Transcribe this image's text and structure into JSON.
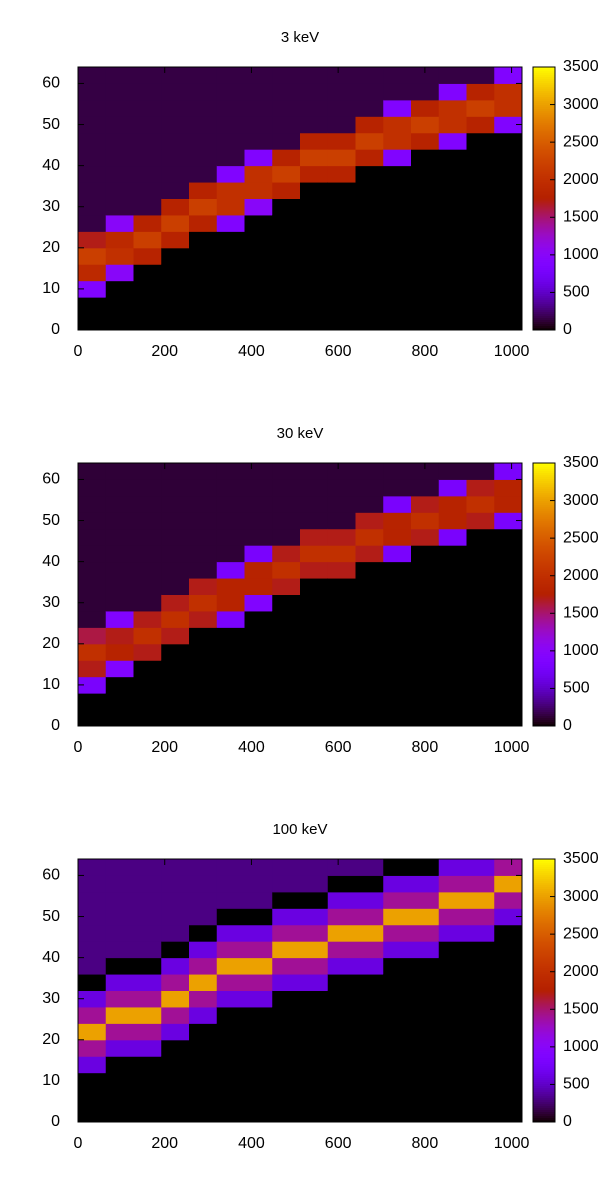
{
  "chart_data": [
    {
      "type": "heatmap",
      "title": "3 keV",
      "palette": "gnuplot-default",
      "xlim": [
        0,
        1024
      ],
      "xticks": [
        0,
        200,
        400,
        600,
        800,
        1000
      ],
      "ylim": [
        0,
        64
      ],
      "yticks": [
        0,
        10,
        20,
        30,
        40,
        50,
        60
      ],
      "cblim": [
        0,
        3500
      ],
      "cbticks": [
        0,
        500,
        1000,
        1500,
        2000,
        2500,
        3000,
        3500
      ],
      "xbins": [
        0,
        64,
        128,
        192,
        256,
        320,
        384,
        448,
        512,
        576,
        640,
        704,
        768,
        832,
        896,
        960,
        1024
      ],
      "ybins": [
        0,
        4,
        8,
        12,
        16,
        20,
        24,
        28,
        32,
        36,
        40,
        44,
        48,
        52,
        56,
        60,
        64
      ],
      "z": [
        [
          0,
          0,
          900,
          1900,
          2200,
          1700,
          150,
          150,
          150,
          150,
          150,
          150,
          150,
          150,
          150,
          150
        ],
        [
          0,
          0,
          0,
          1000,
          2000,
          1900,
          1000,
          150,
          150,
          150,
          150,
          150,
          150,
          150,
          150,
          150
        ],
        [
          0,
          0,
          0,
          0,
          1800,
          2200,
          1800,
          150,
          150,
          150,
          150,
          150,
          150,
          150,
          150,
          150
        ],
        [
          0,
          0,
          0,
          0,
          0,
          1800,
          2200,
          1800,
          150,
          150,
          150,
          150,
          150,
          150,
          150,
          150
        ],
        [
          0,
          0,
          0,
          0,
          0,
          0,
          1800,
          2200,
          1800,
          150,
          150,
          150,
          150,
          150,
          150,
          150
        ],
        [
          0,
          0,
          0,
          0,
          0,
          0,
          900,
          2000,
          2000,
          900,
          150,
          150,
          150,
          150,
          150,
          150
        ],
        [
          0,
          0,
          0,
          0,
          0,
          0,
          0,
          1000,
          2000,
          2000,
          900,
          150,
          150,
          150,
          150,
          150
        ],
        [
          0,
          0,
          0,
          0,
          0,
          0,
          0,
          0,
          1800,
          2200,
          1800,
          150,
          150,
          150,
          150,
          150
        ],
        [
          0,
          0,
          0,
          0,
          0,
          0,
          0,
          0,
          0,
          1800,
          2200,
          1800,
          150,
          150,
          150,
          150
        ],
        [
          0,
          0,
          0,
          0,
          0,
          0,
          0,
          0,
          0,
          1800,
          2200,
          1800,
          150,
          150,
          150,
          150
        ],
        [
          0,
          0,
          0,
          0,
          0,
          0,
          0,
          0,
          0,
          0,
          1800,
          2200,
          1800,
          150,
          150,
          150
        ],
        [
          0,
          0,
          0,
          0,
          0,
          0,
          0,
          0,
          0,
          0,
          900,
          2000,
          2000,
          900,
          150,
          150
        ],
        [
          0,
          0,
          0,
          0,
          0,
          0,
          0,
          0,
          0,
          0,
          0,
          1800,
          2200,
          1800,
          150,
          150
        ],
        [
          0,
          0,
          0,
          0,
          0,
          0,
          0,
          0,
          0,
          0,
          0,
          900,
          2000,
          2000,
          900,
          150
        ],
        [
          0,
          0,
          0,
          0,
          0,
          0,
          0,
          0,
          0,
          0,
          0,
          0,
          1800,
          2200,
          1800,
          150
        ],
        [
          0,
          0,
          0,
          0,
          0,
          0,
          0,
          0,
          0,
          0,
          0,
          0,
          900,
          2000,
          2000,
          900
        ]
      ]
    },
    {
      "type": "heatmap",
      "title": "30 keV",
      "palette": "gnuplot-default",
      "xlim": [
        0,
        1024
      ],
      "xticks": [
        0,
        200,
        400,
        600,
        800,
        1000
      ],
      "ylim": [
        0,
        64
      ],
      "yticks": [
        0,
        10,
        20,
        30,
        40,
        50,
        60
      ],
      "cblim": [
        0,
        3500
      ],
      "cbticks": [
        0,
        500,
        1000,
        1500,
        2000,
        2500,
        3000,
        3500
      ],
      "xbins": [
        0,
        64,
        128,
        192,
        256,
        320,
        384,
        448,
        512,
        576,
        640,
        704,
        768,
        832,
        896,
        960,
        1024
      ],
      "ybins": [
        0,
        4,
        8,
        12,
        16,
        20,
        24,
        28,
        32,
        36,
        40,
        44,
        48,
        52,
        56,
        60,
        64
      ],
      "z": [
        [
          0,
          0,
          800,
          1700,
          2000,
          1600,
          120,
          120,
          120,
          120,
          120,
          120,
          120,
          120,
          120,
          120
        ],
        [
          0,
          0,
          0,
          900,
          1800,
          1700,
          900,
          120,
          120,
          120,
          120,
          120,
          120,
          120,
          120,
          120
        ],
        [
          0,
          0,
          0,
          0,
          1700,
          2000,
          1700,
          120,
          120,
          120,
          120,
          120,
          120,
          120,
          120,
          120
        ],
        [
          0,
          0,
          0,
          0,
          0,
          1700,
          2000,
          1700,
          120,
          120,
          120,
          120,
          120,
          120,
          120,
          120
        ],
        [
          0,
          0,
          0,
          0,
          0,
          0,
          1700,
          2000,
          1700,
          120,
          120,
          120,
          120,
          120,
          120,
          120
        ],
        [
          0,
          0,
          0,
          0,
          0,
          0,
          800,
          1800,
          1800,
          800,
          120,
          120,
          120,
          120,
          120,
          120
        ],
        [
          0,
          0,
          0,
          0,
          0,
          0,
          0,
          900,
          1800,
          1800,
          800,
          120,
          120,
          120,
          120,
          120
        ],
        [
          0,
          0,
          0,
          0,
          0,
          0,
          0,
          0,
          1700,
          2000,
          1700,
          120,
          120,
          120,
          120,
          120
        ],
        [
          0,
          0,
          0,
          0,
          0,
          0,
          0,
          0,
          0,
          1700,
          2000,
          1700,
          120,
          120,
          120,
          120
        ],
        [
          0,
          0,
          0,
          0,
          0,
          0,
          0,
          0,
          0,
          1700,
          2000,
          1700,
          120,
          120,
          120,
          120
        ],
        [
          0,
          0,
          0,
          0,
          0,
          0,
          0,
          0,
          0,
          0,
          1700,
          2000,
          1700,
          120,
          120,
          120
        ],
        [
          0,
          0,
          0,
          0,
          0,
          0,
          0,
          0,
          0,
          0,
          800,
          1800,
          1800,
          800,
          120,
          120
        ],
        [
          0,
          0,
          0,
          0,
          0,
          0,
          0,
          0,
          0,
          0,
          0,
          1700,
          2000,
          1700,
          120,
          120
        ],
        [
          0,
          0,
          0,
          0,
          0,
          0,
          0,
          0,
          0,
          0,
          0,
          800,
          1800,
          1800,
          800,
          120
        ],
        [
          0,
          0,
          0,
          0,
          0,
          0,
          0,
          0,
          0,
          0,
          0,
          0,
          1700,
          2000,
          1700,
          120
        ],
        [
          0,
          0,
          0,
          0,
          0,
          0,
          0,
          0,
          0,
          0,
          0,
          0,
          800,
          1800,
          1800,
          800
        ]
      ]
    },
    {
      "type": "heatmap",
      "title": "100 keV",
      "palette": "gnuplot-default",
      "xlim": [
        0,
        1024
      ],
      "xticks": [
        0,
        200,
        400,
        600,
        800,
        1000
      ],
      "ylim": [
        0,
        64
      ],
      "yticks": [
        0,
        10,
        20,
        30,
        40,
        50,
        60
      ],
      "cblim": [
        0,
        3500
      ],
      "cbticks": [
        0,
        500,
        1000,
        1500,
        2000,
        2500,
        3000,
        3500
      ],
      "xbins": [
        0,
        64,
        128,
        192,
        256,
        320,
        384,
        448,
        512,
        576,
        640,
        704,
        768,
        832,
        896,
        960,
        1024
      ],
      "ybins": [
        0,
        4,
        8,
        12,
        16,
        20,
        24,
        28,
        32,
        36,
        40,
        44,
        48,
        52,
        56,
        60,
        64
      ],
      "z": [
        [
          0,
          0,
          0,
          600,
          1400,
          3000,
          1400,
          600,
          0,
          300,
          300,
          300,
          300,
          300,
          300,
          300
        ],
        [
          0,
          0,
          0,
          0,
          600,
          1400,
          3000,
          1400,
          600,
          0,
          300,
          300,
          300,
          300,
          300,
          300
        ],
        [
          0,
          0,
          0,
          0,
          600,
          1400,
          3000,
          1400,
          600,
          0,
          300,
          300,
          300,
          300,
          300,
          300
        ],
        [
          0,
          0,
          0,
          0,
          0,
          600,
          1400,
          3000,
          1400,
          600,
          0,
          300,
          300,
          300,
          300,
          300
        ],
        [
          0,
          0,
          0,
          0,
          0,
          0,
          600,
          1400,
          3000,
          1400,
          600,
          0,
          300,
          300,
          300,
          300
        ],
        [
          0,
          0,
          0,
          0,
          0,
          0,
          0,
          600,
          1400,
          3000,
          1400,
          600,
          0,
          300,
          300,
          300
        ],
        [
          0,
          0,
          0,
          0,
          0,
          0,
          0,
          600,
          1400,
          3000,
          1400,
          600,
          0,
          300,
          300,
          300
        ],
        [
          0,
          0,
          0,
          0,
          0,
          0,
          0,
          0,
          600,
          1400,
          3000,
          1400,
          600,
          0,
          300,
          300
        ],
        [
          0,
          0,
          0,
          0,
          0,
          0,
          0,
          0,
          600,
          1400,
          3000,
          1400,
          600,
          0,
          300,
          300
        ],
        [
          0,
          0,
          0,
          0,
          0,
          0,
          0,
          0,
          0,
          600,
          1400,
          3000,
          1400,
          600,
          0,
          300
        ],
        [
          0,
          0,
          0,
          0,
          0,
          0,
          0,
          0,
          0,
          600,
          1400,
          3000,
          1400,
          600,
          0,
          300
        ],
        [
          0,
          0,
          0,
          0,
          0,
          0,
          0,
          0,
          0,
          0,
          600,
          1400,
          3000,
          1400,
          600,
          0
        ],
        [
          0,
          0,
          0,
          0,
          0,
          0,
          0,
          0,
          0,
          0,
          600,
          1400,
          3000,
          1400,
          600,
          0
        ],
        [
          0,
          0,
          0,
          0,
          0,
          0,
          0,
          0,
          0,
          0,
          0,
          600,
          1400,
          3000,
          1400,
          600
        ],
        [
          0,
          0,
          0,
          0,
          0,
          0,
          0,
          0,
          0,
          0,
          0,
          600,
          1400,
          3000,
          1400,
          600
        ],
        [
          0,
          0,
          0,
          0,
          0,
          0,
          0,
          0,
          0,
          0,
          0,
          0,
          600,
          1400,
          3000,
          1400
        ]
      ]
    }
  ]
}
